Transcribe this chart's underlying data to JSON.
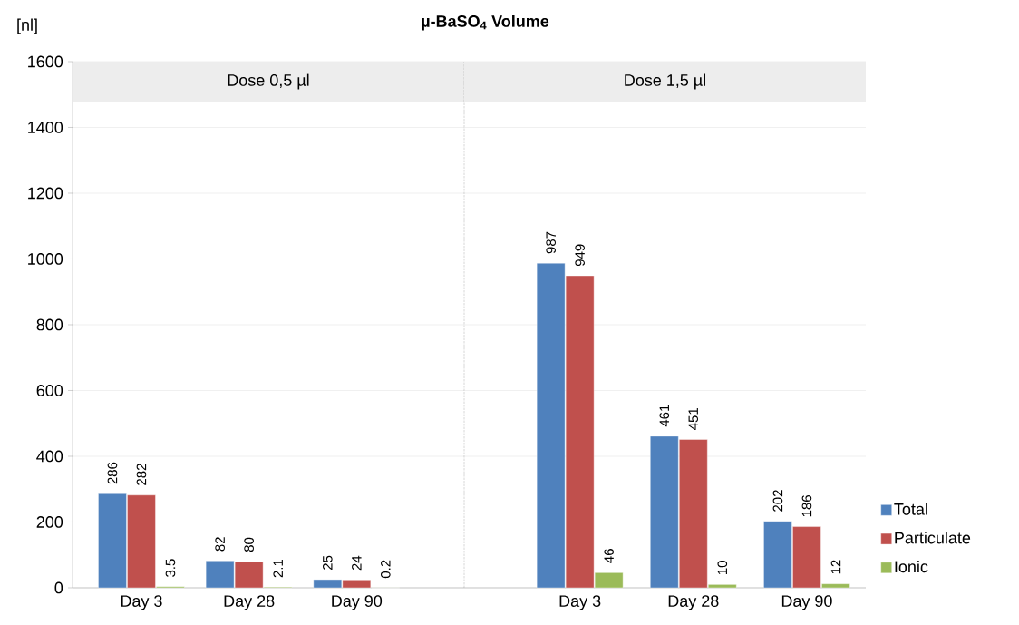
{
  "chart_data": [
    {
      "type": "bar",
      "title": "µ-BaSO$_{4}$   Volume",
      "subtitle": "Dose 0,5 µl",
      "ylabel": "[nl]",
      "categories": [
        "Day 3",
        "Day 28",
        "Day 90"
      ],
      "series": [
        {
          "color": "#4f81bd",
          "values": [
            286,
            82,
            25
          ]
        },
        {
          "color": "#c0504d",
          "values": [
            282,
            80,
            24
          ]
        },
        {
          "color": "#9bbb59",
          "values": [
            3.5,
            2.1,
            0.2
          ]
        }
      ],
      "ylim": [
        0,
        1600
      ],
      "yticks": [
        0,
        200,
        400,
        600,
        800,
        1000,
        1200,
        1400,
        1600
      ],
      "grid": "y",
      "data_labels": true
    },
    {
      "type": "bar",
      "subtitle": "Dose 1,5 µl",
      "categories": [
        "Day 3",
        "Day 28",
        "Day 90"
      ],
      "series": [
        {
          "name": "Total",
          "color": "#4f81bd",
          "values": [
            987,
            461,
            202
          ]
        },
        {
          "name": "Particulate",
          "color": "#c0504d",
          "values": [
            949,
            451,
            186
          ]
        },
        {
          "name": "Ionic",
          "color": "#9bbb59",
          "values": [
            46,
            10,
            12
          ]
        }
      ],
      "ylim": [
        0,
        1600
      ],
      "yticks": [
        0,
        200,
        400,
        600,
        800,
        1000,
        1200,
        1400,
        1600
      ],
      "grid": "y",
      "data_labels": true,
      "tick_labels": "x",
      "legend": "right"
    }
  ]
}
